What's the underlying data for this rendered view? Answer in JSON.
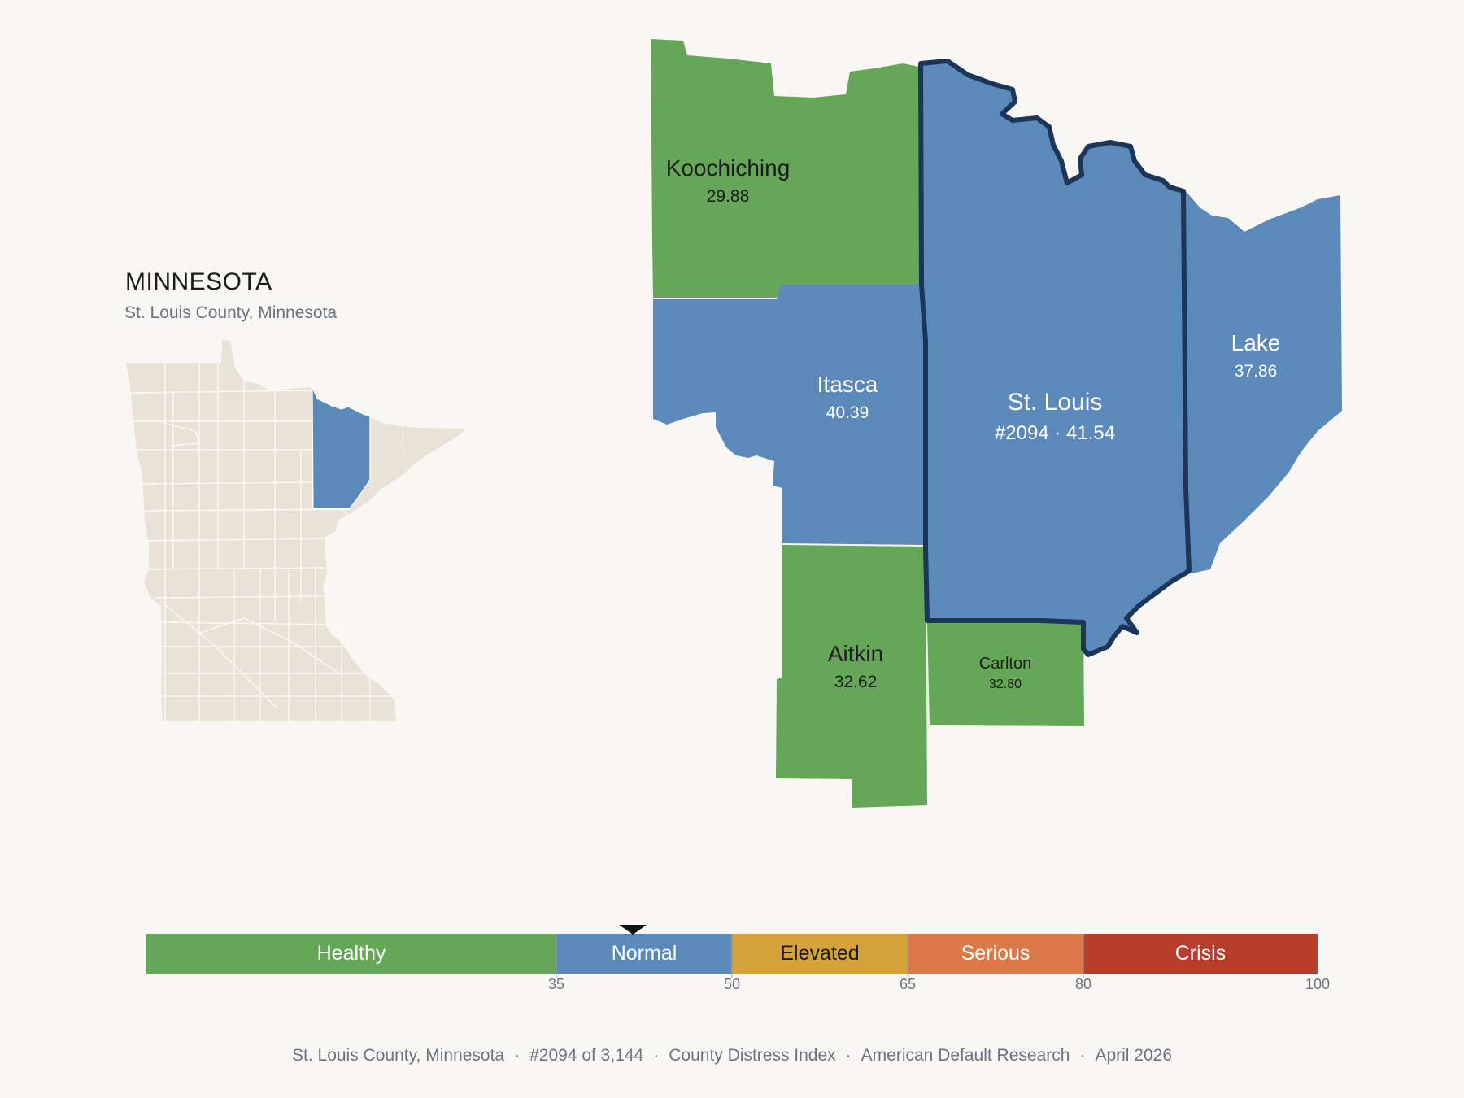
{
  "state": {
    "name": "MINNESOTA",
    "subtitle": "St. Louis County, Minnesota"
  },
  "colors": {
    "healthy": "#66a658",
    "normal": "#5b89b9",
    "elevated": "#d6a33b",
    "serious": "#dc7848",
    "crisis": "#b83d2c",
    "inset_land": "#e8e2d7",
    "focus_outline": "#1c3558"
  },
  "counties": {
    "koochiching": {
      "name": "Koochiching",
      "score": "29.88",
      "category": "healthy"
    },
    "itasca": {
      "name": "Itasca",
      "score": "40.39",
      "category": "normal"
    },
    "st_louis": {
      "name": "St. Louis",
      "score_label": "#2094 · 41.54",
      "rank": 2094,
      "score": 41.54,
      "category": "normal",
      "selected": true
    },
    "lake": {
      "name": "Lake",
      "score": "37.86",
      "category": "normal"
    },
    "aitkin": {
      "name": "Aitkin",
      "score": "32.62",
      "category": "healthy"
    },
    "carlton": {
      "name": "Carlton",
      "score": "32.80",
      "category": "healthy"
    }
  },
  "scale": {
    "bands": [
      {
        "label": "Healthy",
        "from": 0,
        "to": 35
      },
      {
        "label": "Normal",
        "from": 35,
        "to": 50
      },
      {
        "label": "Elevated",
        "from": 50,
        "to": 65
      },
      {
        "label": "Serious",
        "from": 65,
        "to": 80
      },
      {
        "label": "Crisis",
        "from": 80,
        "to": 100
      }
    ],
    "ticks": [
      "35",
      "50",
      "65",
      "80",
      "100"
    ],
    "marker_value": 41.54
  },
  "footer": {
    "county": "St. Louis County, Minnesota",
    "rank": "#2094 of 3,144",
    "index": "County Distress Index",
    "source": "American Default Research",
    "date": "April 2026"
  }
}
